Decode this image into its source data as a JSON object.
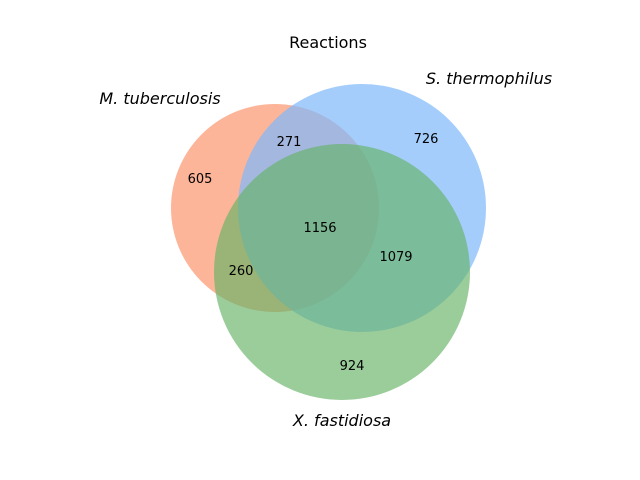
{
  "diagram": {
    "title": "Reactions",
    "sets": [
      {
        "id": "A",
        "label": "M. tuberculosis",
        "color": "#fc8d62"
      },
      {
        "id": "B",
        "label": "S. thermophilus",
        "color": "#7eb8fb"
      },
      {
        "id": "C",
        "label": "X. fastidiosa",
        "color": "#66b266"
      }
    ],
    "regions": {
      "A_only": "605",
      "B_only": "726",
      "C_only": "924",
      "AB_only": "271",
      "AC_only": "260",
      "BC_only": "1079",
      "ABC": "1156"
    }
  }
}
